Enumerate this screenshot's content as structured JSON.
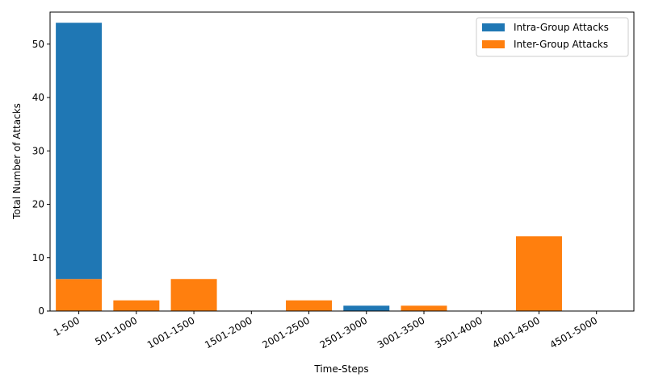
{
  "chart_data": {
    "type": "bar",
    "stacked": true,
    "xlabel": "Time-Steps",
    "ylabel": "Total Number of Attacks",
    "categories": [
      "1-500",
      "501-1000",
      "1001-1500",
      "1501-2000",
      "2001-2500",
      "2501-3000",
      "3001-3500",
      "3501-4000",
      "4001-4500",
      "4501-5000"
    ],
    "ylim": [
      0,
      56
    ],
    "yticks": [
      0,
      10,
      20,
      30,
      40,
      50
    ],
    "series": [
      {
        "name": "Intra-Group Attacks",
        "color": "#1f77b4",
        "values": [
          48,
          0,
          0,
          0,
          0,
          1,
          0,
          0,
          0,
          0
        ]
      },
      {
        "name": "Inter-Group Attacks",
        "color": "#ff7f0e",
        "values": [
          6,
          2,
          6,
          0,
          2,
          0,
          1,
          0,
          14,
          0
        ]
      }
    ],
    "legend": "top-right",
    "grid": false
  }
}
